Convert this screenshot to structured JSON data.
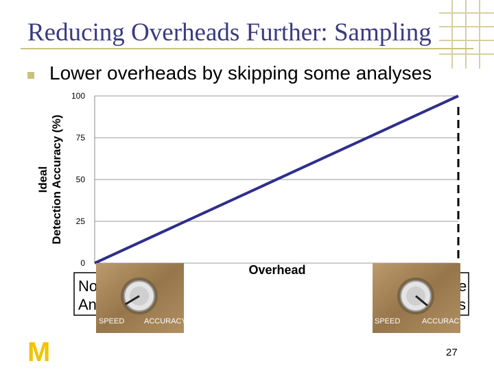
{
  "slide": {
    "title": "Reducing Overheads Further: Sampling",
    "bullet": "Lower overheads by skipping some analyses",
    "page_number": "27",
    "logo": "M",
    "colors": {
      "title": "#3a3a80",
      "accent": "#c9c27a",
      "line": "#2e2e8c",
      "logo": "#f2c400"
    }
  },
  "chart_data": {
    "type": "line",
    "title": "",
    "xlabel": "Overhead",
    "ylabel_lines": [
      "Ideal",
      "Detection Accuracy (%)"
    ],
    "y_ticks": [
      0,
      25,
      50,
      75,
      100
    ],
    "ylim": [
      0,
      100
    ],
    "xlim": [
      0,
      100
    ],
    "grid": true,
    "series": [
      {
        "x": [
          0,
          100
        ],
        "y": [
          0,
          100
        ]
      }
    ],
    "markers": [
      {
        "x": 100,
        "style": "dashed-vertical"
      }
    ],
    "annotations": {
      "left_box_lines": [
        "No",
        "An"
      ],
      "right_box_lines": [
        "e",
        "s"
      ],
      "knob_labels": [
        "SPEED",
        "ACCURACY"
      ]
    }
  }
}
